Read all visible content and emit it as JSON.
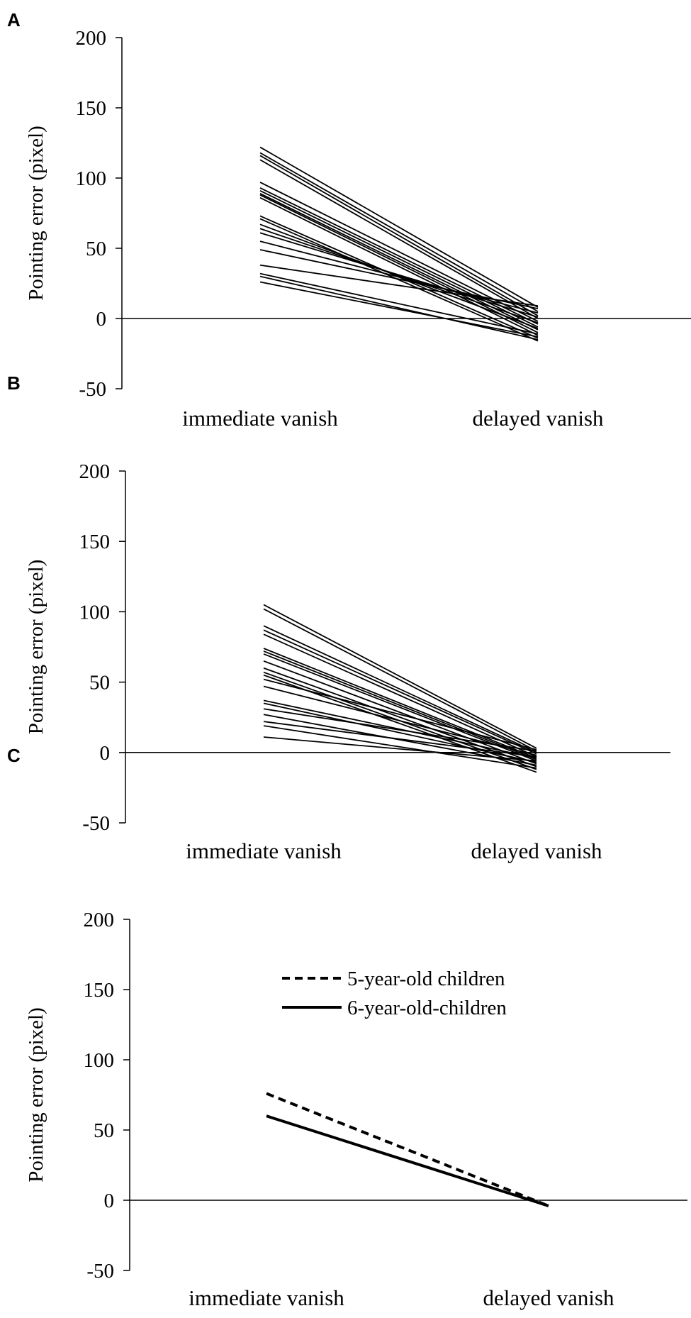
{
  "chart_data": [
    {
      "panel": "A",
      "type": "line",
      "ylabel": "Pointing error (pixel)",
      "categories": [
        "immediate vanish",
        "delayed vanish"
      ],
      "ylim": [
        -50,
        200
      ],
      "yticks": [
        200,
        150,
        100,
        50,
        0,
        -50
      ],
      "zero_line": true,
      "series": [
        {
          "name": "s1",
          "values": [
            122,
            8
          ]
        },
        {
          "name": "s2",
          "values": [
            118,
            5
          ]
        },
        {
          "name": "s3",
          "values": [
            116,
            2
          ]
        },
        {
          "name": "s4",
          "values": [
            113,
            0
          ]
        },
        {
          "name": "s5",
          "values": [
            97,
            -2
          ]
        },
        {
          "name": "s6",
          "values": [
            93,
            -4
          ]
        },
        {
          "name": "s7",
          "values": [
            91,
            -6
          ]
        },
        {
          "name": "s8",
          "values": [
            89,
            -8
          ]
        },
        {
          "name": "s9",
          "values": [
            88,
            -10
          ]
        },
        {
          "name": "s10",
          "values": [
            86,
            -12
          ]
        },
        {
          "name": "s11",
          "values": [
            73,
            -14
          ]
        },
        {
          "name": "s12",
          "values": [
            71,
            -16
          ]
        },
        {
          "name": "s13",
          "values": [
            67,
            -7
          ]
        },
        {
          "name": "s14",
          "values": [
            64,
            -3
          ]
        },
        {
          "name": "s15",
          "values": [
            61,
            1
          ]
        },
        {
          "name": "s16",
          "values": [
            55,
            4
          ]
        },
        {
          "name": "s17",
          "values": [
            49,
            7
          ]
        },
        {
          "name": "s18",
          "values": [
            38,
            9
          ]
        },
        {
          "name": "s19",
          "values": [
            32,
            -11
          ]
        },
        {
          "name": "s20",
          "values": [
            30,
            -15
          ]
        },
        {
          "name": "s21",
          "values": [
            26,
            -13
          ]
        }
      ]
    },
    {
      "panel": "B",
      "type": "line",
      "ylabel": "Pointing error (pixel)",
      "categories": [
        "immediate vanish",
        "delayed vanish"
      ],
      "ylim": [
        -50,
        200
      ],
      "yticks": [
        200,
        150,
        100,
        50,
        0,
        -50
      ],
      "zero_line": true,
      "series": [
        {
          "name": "s1",
          "values": [
            105,
            3
          ]
        },
        {
          "name": "s2",
          "values": [
            102,
            1
          ]
        },
        {
          "name": "s3",
          "values": [
            90,
            0
          ]
        },
        {
          "name": "s4",
          "values": [
            87,
            -1
          ]
        },
        {
          "name": "s5",
          "values": [
            84,
            -3
          ]
        },
        {
          "name": "s6",
          "values": [
            74,
            -4
          ]
        },
        {
          "name": "s7",
          "values": [
            72,
            -5
          ]
        },
        {
          "name": "s8",
          "values": [
            70,
            -6
          ]
        },
        {
          "name": "s9",
          "values": [
            65,
            -8
          ]
        },
        {
          "name": "s10",
          "values": [
            60,
            -10
          ]
        },
        {
          "name": "s11",
          "values": [
            57,
            -12
          ]
        },
        {
          "name": "s12",
          "values": [
            55,
            -14
          ]
        },
        {
          "name": "s13",
          "values": [
            52,
            2
          ]
        },
        {
          "name": "s14",
          "values": [
            47,
            -2
          ]
        },
        {
          "name": "s15",
          "values": [
            37,
            -4
          ]
        },
        {
          "name": "s16",
          "values": [
            35,
            -7
          ]
        },
        {
          "name": "s17",
          "values": [
            31,
            1
          ]
        },
        {
          "name": "s18",
          "values": [
            27,
            -9
          ]
        },
        {
          "name": "s19",
          "values": [
            22,
            -3
          ]
        },
        {
          "name": "s20",
          "values": [
            19,
            -11
          ]
        },
        {
          "name": "s21",
          "values": [
            11,
            -6
          ]
        }
      ]
    },
    {
      "panel": "C",
      "type": "line",
      "ylabel": "Pointing error (pixel)",
      "categories": [
        "immediate vanish",
        "delayed vanish"
      ],
      "ylim": [
        -50,
        200
      ],
      "yticks": [
        200,
        150,
        100,
        50,
        0,
        -50
      ],
      "zero_line": true,
      "legend": [
        {
          "label": "5-year-old children",
          "style": "dashed"
        },
        {
          "label": "6-year-old-children",
          "style": "solid"
        }
      ],
      "series": [
        {
          "name": "5-year-old children",
          "style": "dashed",
          "values": [
            76,
            -4
          ]
        },
        {
          "name": "6-year-old-children",
          "style": "solid",
          "values": [
            60,
            -4
          ]
        }
      ]
    }
  ]
}
